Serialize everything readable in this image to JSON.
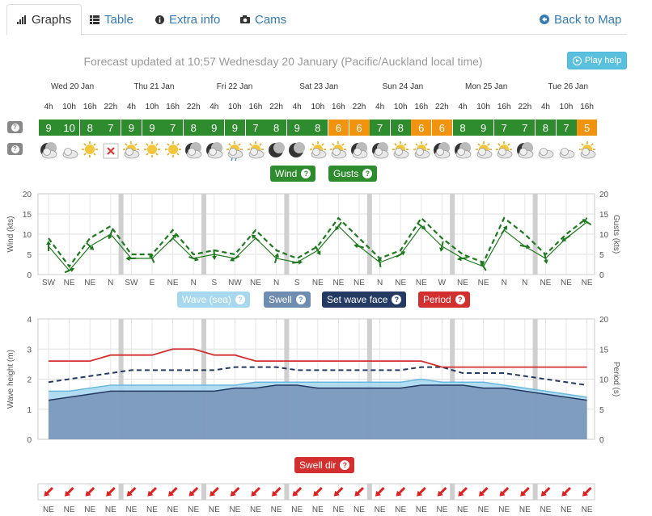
{
  "tabs": [
    {
      "label": "Graphs",
      "icon": "bar-chart-icon"
    },
    {
      "label": "Table",
      "icon": "list-icon"
    },
    {
      "label": "Extra info",
      "icon": "info-icon"
    },
    {
      "label": "Cams",
      "icon": "camera-icon"
    }
  ],
  "back_to_map": "Back to Map",
  "forecast_text": "Forecast updated at 10:57 Wednesday 20 January (Pacific/Auckland local time)",
  "play_help": "Play help",
  "days": [
    "Wed 20 Jan",
    "Thu 21 Jan",
    "Fri 22 Jan",
    "Sat 23 Jan",
    "Sun 24 Jan",
    "Mon 25 Jan",
    "Tue 26 Jan"
  ],
  "hours": [
    "4h",
    "10h",
    "16h",
    "22h",
    "4h",
    "10h",
    "16h",
    "22h",
    "4h",
    "10h",
    "16h",
    "22h",
    "4h",
    "10h",
    "16h",
    "22h",
    "4h",
    "10h",
    "16h",
    "22h",
    "4h",
    "10h",
    "16h",
    "22h",
    "4h",
    "10h",
    "16h"
  ],
  "wind_rating": [
    9,
    10,
    8,
    7,
    9,
    9,
    7,
    8,
    9,
    9,
    7,
    8,
    9,
    8,
    6,
    6,
    7,
    8,
    6,
    6,
    8,
    9,
    7,
    7,
    8,
    7,
    5
  ],
  "rating_colors": {
    "good": "#2e8b2e",
    "ok": "#f0940f"
  },
  "weather_icons": [
    "cloud-moon",
    "cloudy",
    "sun",
    "missing",
    "sun-cloud",
    "sun",
    "sun",
    "cloud-moon",
    "cloud-moon",
    "sun-rain",
    "sun-cloud",
    "moon",
    "moon",
    "sun-cloud",
    "sun-cloud",
    "cloud-moon",
    "cloud-moon",
    "sun-cloud",
    "sun-cloud",
    "cloud-moon",
    "cloud-moon",
    "sun-cloud",
    "sun-cloud",
    "cloud-moon",
    "cloudy",
    "cloudy",
    "sun-cloud"
  ],
  "legend_wind": {
    "wind": "Wind",
    "gusts": "Gusts"
  },
  "legend_wave": {
    "wave": "Wave (sea)",
    "swell": "Swell",
    "set": "Set wave face",
    "period": "Period"
  },
  "legend_swelldir": "Swell dir",
  "colors": {
    "wind": "#1e7a1e",
    "wave": "#a8d8f0",
    "swell": "#7a96b8",
    "set": "#243a63",
    "period": "#d32f2f",
    "arrow": "#dd2222"
  },
  "chart_data": [
    {
      "type": "line",
      "ylabel": "Wind (kts)",
      "ylabel_right": "Gusts (kts)",
      "ylim": [
        0,
        20
      ],
      "yticks": [
        0,
        5,
        10,
        15,
        20
      ],
      "grid": true,
      "x": [
        "4h",
        "10h",
        "16h",
        "22h",
        "4h",
        "10h",
        "16h",
        "22h",
        "4h",
        "10h",
        "16h",
        "22h",
        "4h",
        "10h",
        "16h",
        "22h",
        "4h",
        "10h",
        "16h",
        "22h",
        "4h",
        "10h",
        "16h",
        "22h",
        "4h",
        "10h",
        "16h"
      ],
      "series": [
        {
          "name": "Wind",
          "values": [
            7,
            1,
            7,
            10,
            4,
            4,
            9,
            4,
            5,
            4,
            9,
            4,
            3,
            6,
            12,
            7,
            3,
            5,
            12,
            7,
            4,
            2,
            11,
            7,
            4,
            9,
            13
          ]
        },
        {
          "name": "Gusts",
          "values": [
            9,
            2,
            9,
            12,
            5,
            5,
            11,
            5,
            6,
            5,
            11,
            6,
            4,
            7,
            14,
            9,
            4,
            6,
            14,
            9,
            5,
            3,
            14,
            10,
            5,
            10,
            14
          ]
        }
      ],
      "direction_labels": [
        "SW",
        "NE",
        "NE",
        "N",
        "SW",
        "E",
        "NE",
        "N",
        "S",
        "NW",
        "NE",
        "N",
        "S",
        "NE",
        "NE",
        "NE",
        "N",
        "NE",
        "NE",
        "W",
        "NE",
        "NE",
        "N",
        "N",
        "NE",
        "NE",
        "NE"
      ]
    },
    {
      "type": "area",
      "ylabel": "Wave height (m)",
      "ylabel_right": "Period (s)",
      "ylim": [
        0,
        4
      ],
      "ylim_right": [
        0,
        20
      ],
      "yticks": [
        0,
        1,
        2,
        3,
        4
      ],
      "yticks_right": [
        0,
        5,
        10,
        15,
        20
      ],
      "grid": true,
      "series": [
        {
          "name": "Wave (sea)",
          "values": [
            1.6,
            1.6,
            1.7,
            1.8,
            1.8,
            1.8,
            1.8,
            1.8,
            1.8,
            1.8,
            1.9,
            1.9,
            1.9,
            1.9,
            1.9,
            1.9,
            1.9,
            1.9,
            2.0,
            1.9,
            1.9,
            1.9,
            1.8,
            1.7,
            1.6,
            1.5,
            1.4
          ]
        },
        {
          "name": "Swell",
          "values": [
            1.3,
            1.4,
            1.5,
            1.6,
            1.6,
            1.6,
            1.6,
            1.6,
            1.6,
            1.7,
            1.7,
            1.8,
            1.8,
            1.7,
            1.7,
            1.7,
            1.7,
            1.7,
            1.8,
            1.8,
            1.8,
            1.7,
            1.7,
            1.6,
            1.5,
            1.4,
            1.3
          ]
        },
        {
          "name": "Set wave face",
          "values": [
            1.9,
            2.0,
            2.1,
            2.2,
            2.3,
            2.3,
            2.3,
            2.3,
            2.3,
            2.4,
            2.4,
            2.4,
            2.3,
            2.3,
            2.3,
            2.3,
            2.3,
            2.3,
            2.4,
            2.4,
            2.2,
            2.2,
            2.2,
            2.1,
            2.0,
            1.9,
            1.8
          ]
        },
        {
          "name": "Period",
          "values": [
            13,
            13,
            13,
            14,
            14,
            14,
            15,
            15,
            14,
            14,
            13,
            13,
            13,
            13,
            13,
            13,
            13,
            13,
            13,
            12,
            12,
            12,
            12,
            12,
            12,
            12,
            12
          ]
        }
      ]
    }
  ],
  "swell_dir_labels": [
    "NE",
    "NE",
    "NE",
    "NE",
    "NE",
    "NE",
    "NE",
    "NE",
    "NE",
    "NE",
    "NE",
    "NE",
    "NE",
    "NE",
    "NE",
    "NE",
    "NE",
    "NE",
    "NE",
    "NE",
    "NE",
    "NE",
    "NE",
    "NE",
    "NE",
    "NE",
    "NE"
  ]
}
